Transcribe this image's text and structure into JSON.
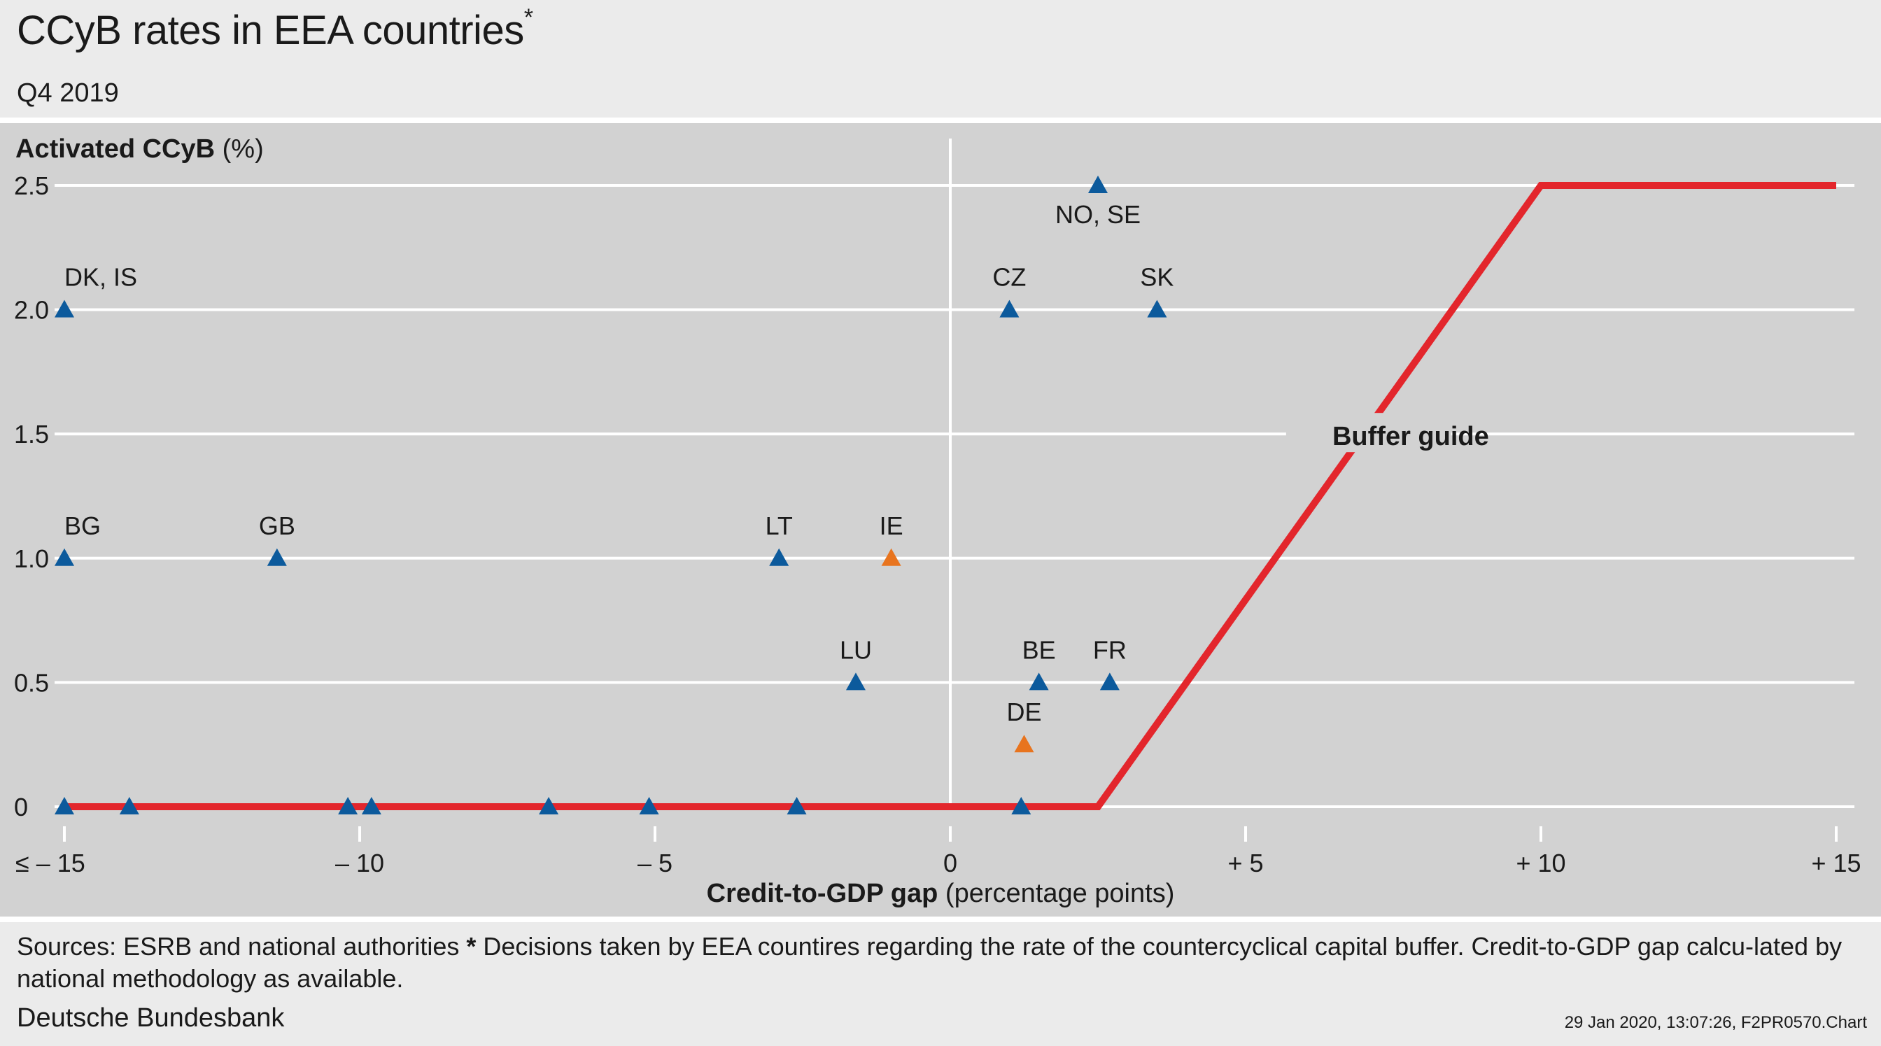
{
  "header": {
    "title": "CCyB rates in EEA countries",
    "title_mark": "*",
    "subtitle": "Q4 2019"
  },
  "footer": {
    "sources_prefix": "Sources: ESRB and national authorities ",
    "sources_mark": "*",
    "sources_text": " Decisions taken by EEA countires regarding the rate of the countercyclical capital buffer. Credit-to-GDP gap calcu-lated by national methodology as available.",
    "publisher": "Deutsche Bundesbank",
    "stamp": "29 Jan 2020, 13:07:26, F2PR0570.Chart"
  },
  "colors": {
    "background": "#ebebeb",
    "plot_background": "#d2d2d2",
    "grid": "#ffffff",
    "series_blue": "#0c5a9c",
    "series_orange": "#e8741e",
    "buffer_guide": "#e3262c"
  },
  "chart_data": {
    "type": "scatter",
    "title": "CCyB rates in EEA countries",
    "subtitle": "Q4 2019",
    "ylabel_bold": "Activated CCyB",
    "ylabel_rest": " (%)",
    "xlabel_bold": "Credit-to-GDP gap",
    "xlabel_rest": " (percentage points)",
    "xlim": [
      -15,
      15
    ],
    "ylim": [
      0,
      2.5
    ],
    "x_ticks": [
      {
        "value": -15,
        "label": "≤ – 15"
      },
      {
        "value": -10,
        "label": "– 10"
      },
      {
        "value": -5,
        "label": "– 5"
      },
      {
        "value": 0,
        "label": "0"
      },
      {
        "value": 5,
        "label": "+ 5"
      },
      {
        "value": 10,
        "label": "+ 10"
      },
      {
        "value": 15,
        "label": "+ 15"
      }
    ],
    "y_ticks": [
      {
        "value": 0,
        "label": "0"
      },
      {
        "value": 0.5,
        "label": "0.5"
      },
      {
        "value": 1.0,
        "label": "1.0"
      },
      {
        "value": 1.5,
        "label": "1.5"
      },
      {
        "value": 2.0,
        "label": "2.0"
      },
      {
        "value": 2.5,
        "label": "2.5"
      }
    ],
    "grid": true,
    "points": [
      {
        "label": "NO, SE",
        "x": 2.5,
        "y": 2.5,
        "color": "blue",
        "label_pos": "below"
      },
      {
        "label": "DK, IS",
        "x": -15,
        "y": 2.0,
        "color": "blue",
        "label_pos": "above"
      },
      {
        "label": "CZ",
        "x": 1.0,
        "y": 2.0,
        "color": "blue",
        "label_pos": "above"
      },
      {
        "label": "SK",
        "x": 3.5,
        "y": 2.0,
        "color": "blue",
        "label_pos": "above"
      },
      {
        "label": "BG",
        "x": -15,
        "y": 1.0,
        "color": "blue",
        "label_pos": "above"
      },
      {
        "label": "GB",
        "x": -11.4,
        "y": 1.0,
        "color": "blue",
        "label_pos": "above"
      },
      {
        "label": "LT",
        "x": -2.9,
        "y": 1.0,
        "color": "blue",
        "label_pos": "above"
      },
      {
        "label": "IE",
        "x": -1.0,
        "y": 1.0,
        "color": "orange",
        "label_pos": "above"
      },
      {
        "label": "LU",
        "x": -1.6,
        "y": 0.5,
        "color": "blue",
        "label_pos": "above"
      },
      {
        "label": "BE",
        "x": 1.5,
        "y": 0.5,
        "color": "blue",
        "label_pos": "above"
      },
      {
        "label": "FR",
        "x": 2.7,
        "y": 0.5,
        "color": "blue",
        "label_pos": "above"
      },
      {
        "label": "DE",
        "x": 1.25,
        "y": 0.25,
        "color": "orange",
        "label_pos": "above"
      },
      {
        "label": "",
        "x": -15,
        "y": 0,
        "color": "blue"
      },
      {
        "label": "",
        "x": -13.9,
        "y": 0,
        "color": "blue"
      },
      {
        "label": "",
        "x": -10.2,
        "y": 0,
        "color": "blue"
      },
      {
        "label": "",
        "x": -9.8,
        "y": 0,
        "color": "blue"
      },
      {
        "label": "",
        "x": -6.8,
        "y": 0,
        "color": "blue"
      },
      {
        "label": "",
        "x": -5.1,
        "y": 0,
        "color": "blue"
      },
      {
        "label": "",
        "x": -2.6,
        "y": 0,
        "color": "blue"
      },
      {
        "label": "",
        "x": 1.2,
        "y": 0,
        "color": "blue"
      }
    ],
    "buffer_guide": {
      "label": "Buffer guide",
      "points": [
        [
          -15,
          0
        ],
        [
          2.5,
          0
        ],
        [
          10,
          2.5
        ],
        [
          15,
          2.5
        ]
      ]
    }
  }
}
